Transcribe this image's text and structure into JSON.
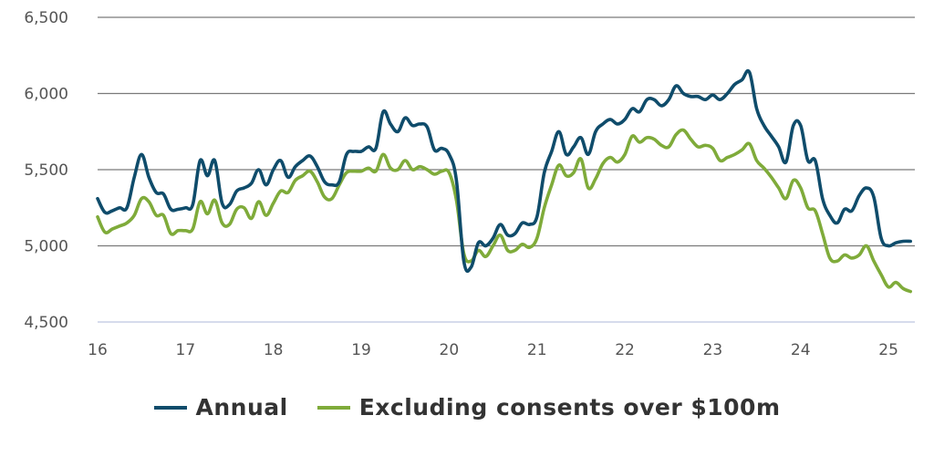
{
  "chart_data": {
    "type": "line",
    "title": "",
    "xlabel": "",
    "ylabel": "",
    "xlim": [
      16,
      25.3
    ],
    "ylim": [
      4500,
      6500
    ],
    "x_ticks": [
      16,
      17,
      18,
      19,
      20,
      21,
      22,
      23,
      24,
      25
    ],
    "x_tick_labels": [
      "16",
      "17",
      "18",
      "19",
      "20",
      "21",
      "22",
      "23",
      "24",
      "25"
    ],
    "y_ticks": [
      4500,
      5000,
      5500,
      6000,
      6500
    ],
    "y_tick_labels": [
      "4,500",
      "5,000",
      "5,500",
      "6,000",
      "6,500"
    ],
    "grid": "horizontal",
    "legend_position": "bottom",
    "series": [
      {
        "name": "Annual",
        "color": "#0f4c6b",
        "x": [
          16.0,
          16.083,
          16.167,
          16.25,
          16.333,
          16.417,
          16.5,
          16.583,
          16.667,
          16.75,
          16.833,
          16.917,
          17.0,
          17.083,
          17.167,
          17.25,
          17.333,
          17.417,
          17.5,
          17.583,
          17.667,
          17.75,
          17.833,
          17.917,
          18.0,
          18.083,
          18.167,
          18.25,
          18.333,
          18.417,
          18.5,
          18.583,
          18.667,
          18.75,
          18.833,
          18.917,
          19.0,
          19.083,
          19.167,
          19.25,
          19.333,
          19.417,
          19.5,
          19.583,
          19.667,
          19.75,
          19.833,
          19.917,
          20.0,
          20.083,
          20.167,
          20.25,
          20.333,
          20.417,
          20.5,
          20.583,
          20.667,
          20.75,
          20.833,
          20.917,
          21.0,
          21.083,
          21.167,
          21.25,
          21.333,
          21.417,
          21.5,
          21.583,
          21.667,
          21.75,
          21.833,
          21.917,
          22.0,
          22.083,
          22.167,
          22.25,
          22.333,
          22.417,
          22.5,
          22.583,
          22.667,
          22.75,
          22.833,
          22.917,
          23.0,
          23.083,
          23.167,
          23.25,
          23.333,
          23.417,
          23.5,
          23.583,
          23.667,
          23.75,
          23.833,
          23.917,
          24.0,
          24.083,
          24.167,
          24.25,
          24.333,
          24.417,
          24.5,
          24.583,
          24.667,
          24.75,
          24.833,
          24.917,
          25.0,
          25.083,
          25.167,
          25.25
        ],
        "values": [
          5310,
          5220,
          5230,
          5250,
          5250,
          5450,
          5600,
          5450,
          5350,
          5340,
          5240,
          5240,
          5250,
          5270,
          5560,
          5460,
          5560,
          5280,
          5270,
          5360,
          5380,
          5410,
          5500,
          5400,
          5500,
          5560,
          5450,
          5520,
          5560,
          5590,
          5520,
          5420,
          5400,
          5420,
          5600,
          5620,
          5620,
          5650,
          5640,
          5880,
          5800,
          5750,
          5840,
          5790,
          5800,
          5780,
          5630,
          5640,
          5600,
          5430,
          4900,
          4860,
          5020,
          5000,
          5050,
          5140,
          5070,
          5080,
          5150,
          5140,
          5190,
          5480,
          5620,
          5750,
          5600,
          5650,
          5710,
          5600,
          5750,
          5800,
          5830,
          5800,
          5830,
          5900,
          5880,
          5960,
          5960,
          5920,
          5960,
          6050,
          6000,
          5980,
          5980,
          5960,
          5990,
          5960,
          6000,
          6060,
          6090,
          6140,
          5900,
          5790,
          5720,
          5650,
          5550,
          5790,
          5790,
          5560,
          5560,
          5310,
          5200,
          5150,
          5240,
          5230,
          5330,
          5380,
          5320,
          5050,
          5000,
          5020,
          5030,
          5030
        ]
      },
      {
        "name": "Excluding consents over $100m",
        "color": "#7fab3a",
        "x": [
          16.0,
          16.083,
          16.167,
          16.25,
          16.333,
          16.417,
          16.5,
          16.583,
          16.667,
          16.75,
          16.833,
          16.917,
          17.0,
          17.083,
          17.167,
          17.25,
          17.333,
          17.417,
          17.5,
          17.583,
          17.667,
          17.75,
          17.833,
          17.917,
          18.0,
          18.083,
          18.167,
          18.25,
          18.333,
          18.417,
          18.5,
          18.583,
          18.667,
          18.75,
          18.833,
          18.917,
          19.0,
          19.083,
          19.167,
          19.25,
          19.333,
          19.417,
          19.5,
          19.583,
          19.667,
          19.75,
          19.833,
          19.917,
          20.0,
          20.083,
          20.167,
          20.25,
          20.333,
          20.417,
          20.5,
          20.583,
          20.667,
          20.75,
          20.833,
          20.917,
          21.0,
          21.083,
          21.167,
          21.25,
          21.333,
          21.417,
          21.5,
          21.583,
          21.667,
          21.75,
          21.833,
          21.917,
          22.0,
          22.083,
          22.167,
          22.25,
          22.333,
          22.417,
          22.5,
          22.583,
          22.667,
          22.75,
          22.833,
          22.917,
          23.0,
          23.083,
          23.167,
          23.25,
          23.333,
          23.417,
          23.5,
          23.583,
          23.667,
          23.75,
          23.833,
          23.917,
          24.0,
          24.083,
          24.167,
          24.25,
          24.333,
          24.417,
          24.5,
          24.583,
          24.667,
          24.75,
          24.833,
          24.917,
          25.0,
          25.083,
          25.167,
          25.25
        ],
        "values": [
          5190,
          5090,
          5110,
          5130,
          5150,
          5200,
          5310,
          5290,
          5200,
          5200,
          5080,
          5100,
          5100,
          5110,
          5290,
          5210,
          5300,
          5150,
          5140,
          5240,
          5250,
          5180,
          5290,
          5200,
          5280,
          5360,
          5350,
          5430,
          5460,
          5490,
          5420,
          5320,
          5310,
          5400,
          5480,
          5490,
          5490,
          5510,
          5490,
          5600,
          5510,
          5500,
          5560,
          5500,
          5520,
          5500,
          5470,
          5490,
          5480,
          5300,
          4950,
          4900,
          4970,
          4930,
          5000,
          5070,
          4970,
          4970,
          5010,
          4990,
          5050,
          5250,
          5400,
          5530,
          5460,
          5480,
          5570,
          5380,
          5440,
          5540,
          5580,
          5550,
          5600,
          5720,
          5680,
          5710,
          5700,
          5660,
          5650,
          5730,
          5760,
          5700,
          5650,
          5660,
          5640,
          5560,
          5580,
          5600,
          5630,
          5670,
          5560,
          5510,
          5450,
          5380,
          5310,
          5430,
          5380,
          5250,
          5230,
          5080,
          4920,
          4900,
          4940,
          4920,
          4940,
          5000,
          4900,
          4810,
          4730,
          4760,
          4720,
          4700
        ]
      }
    ]
  }
}
